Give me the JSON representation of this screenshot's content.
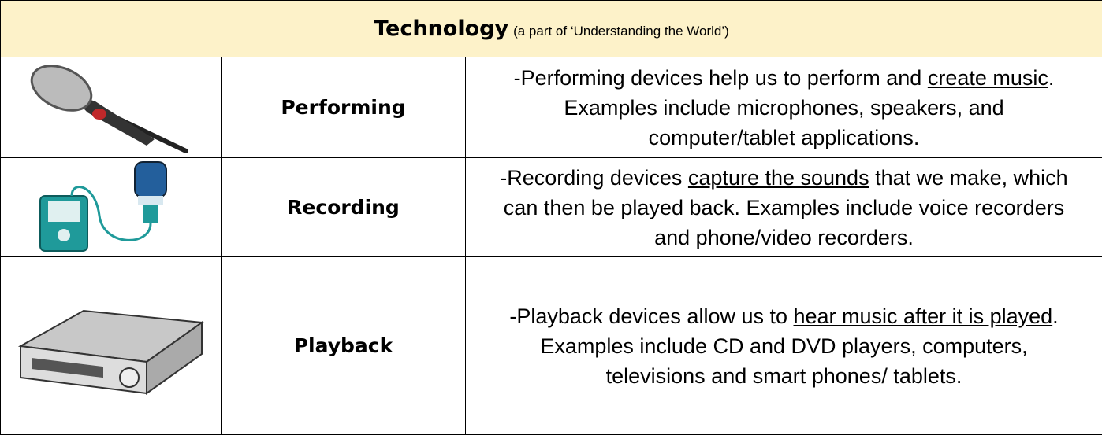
{
  "header": {
    "title": "Technology",
    "subtitle": "(a part of ‘Understanding the World’)"
  },
  "rows": [
    {
      "name": "Performing",
      "description": {
        "before": "-Performing devices help us to perform and ",
        "underlined": "create music",
        "after": ". Examples include microphones, speakers, and computer/tablet applications."
      }
    },
    {
      "name": "Recording",
      "description": {
        "before": "-Recording devices ",
        "underlined": "capture the sounds",
        "after": " that we make, which can then be played back. Examples include voice recorders and phone/video recorders."
      }
    },
    {
      "name": "Playback",
      "description": {
        "before": "-Playback devices allow us to ",
        "underlined": "hear music after it is played",
        "after": ". Examples include CD and DVD players, computers, televisions and smart phones/ tablets."
      }
    }
  ]
}
